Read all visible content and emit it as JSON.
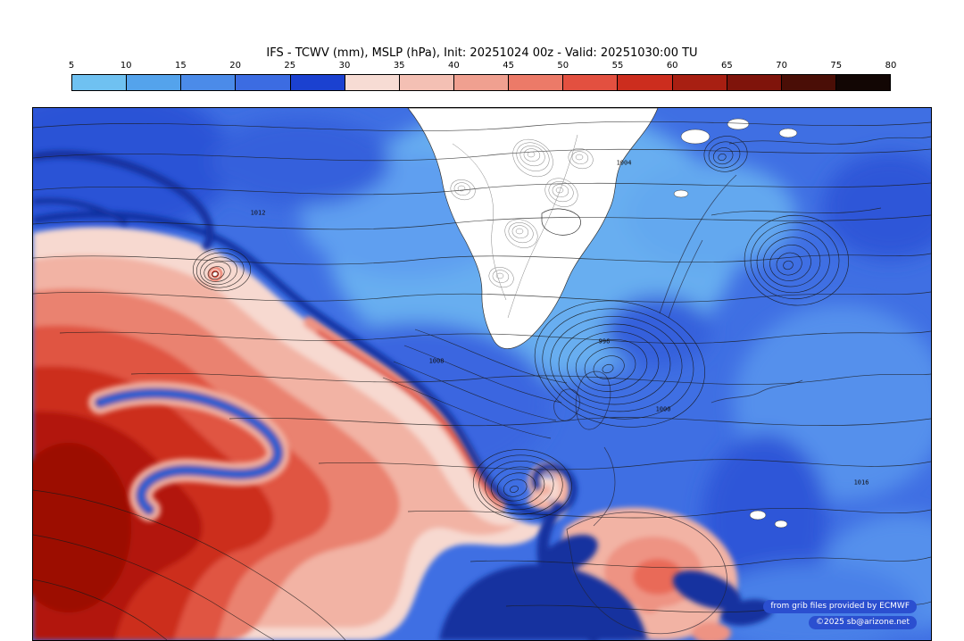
{
  "header": {
    "title": "IFS - TCWV (mm), MSLP (hPa), Init: 20251024 00z - Valid: 20251030:00 TU"
  },
  "colorbar": {
    "unit": "mm",
    "tick_labels": [
      "5",
      "10",
      "15",
      "20",
      "25",
      "30",
      "35",
      "40",
      "45",
      "50",
      "55",
      "60",
      "65",
      "70",
      "75",
      "80"
    ],
    "segment_colors": [
      "#6fc1f1",
      "#54a3ec",
      "#4b8be9",
      "#3c6ce2",
      "#1b41d0",
      "#f7dcd4",
      "#f4c0b4",
      "#f0a090",
      "#ec7a68",
      "#e35040",
      "#cc2d1e",
      "#a81f12",
      "#7f140b",
      "#4a0e06",
      "#120604"
    ]
  },
  "map": {
    "isobar_labels": [
      "996",
      "1000",
      "1004",
      "1008",
      "1012",
      "1016"
    ],
    "credits": {
      "line1": "from grib files provided by ECMWF",
      "line2": "©2025 sb@arizone.net"
    },
    "accent_colors": {
      "base_blue": "#3f6fe3",
      "navy_filament": "#12309f",
      "warm_core": "#b21507",
      "credit_badge": "#2b4fd0"
    }
  }
}
